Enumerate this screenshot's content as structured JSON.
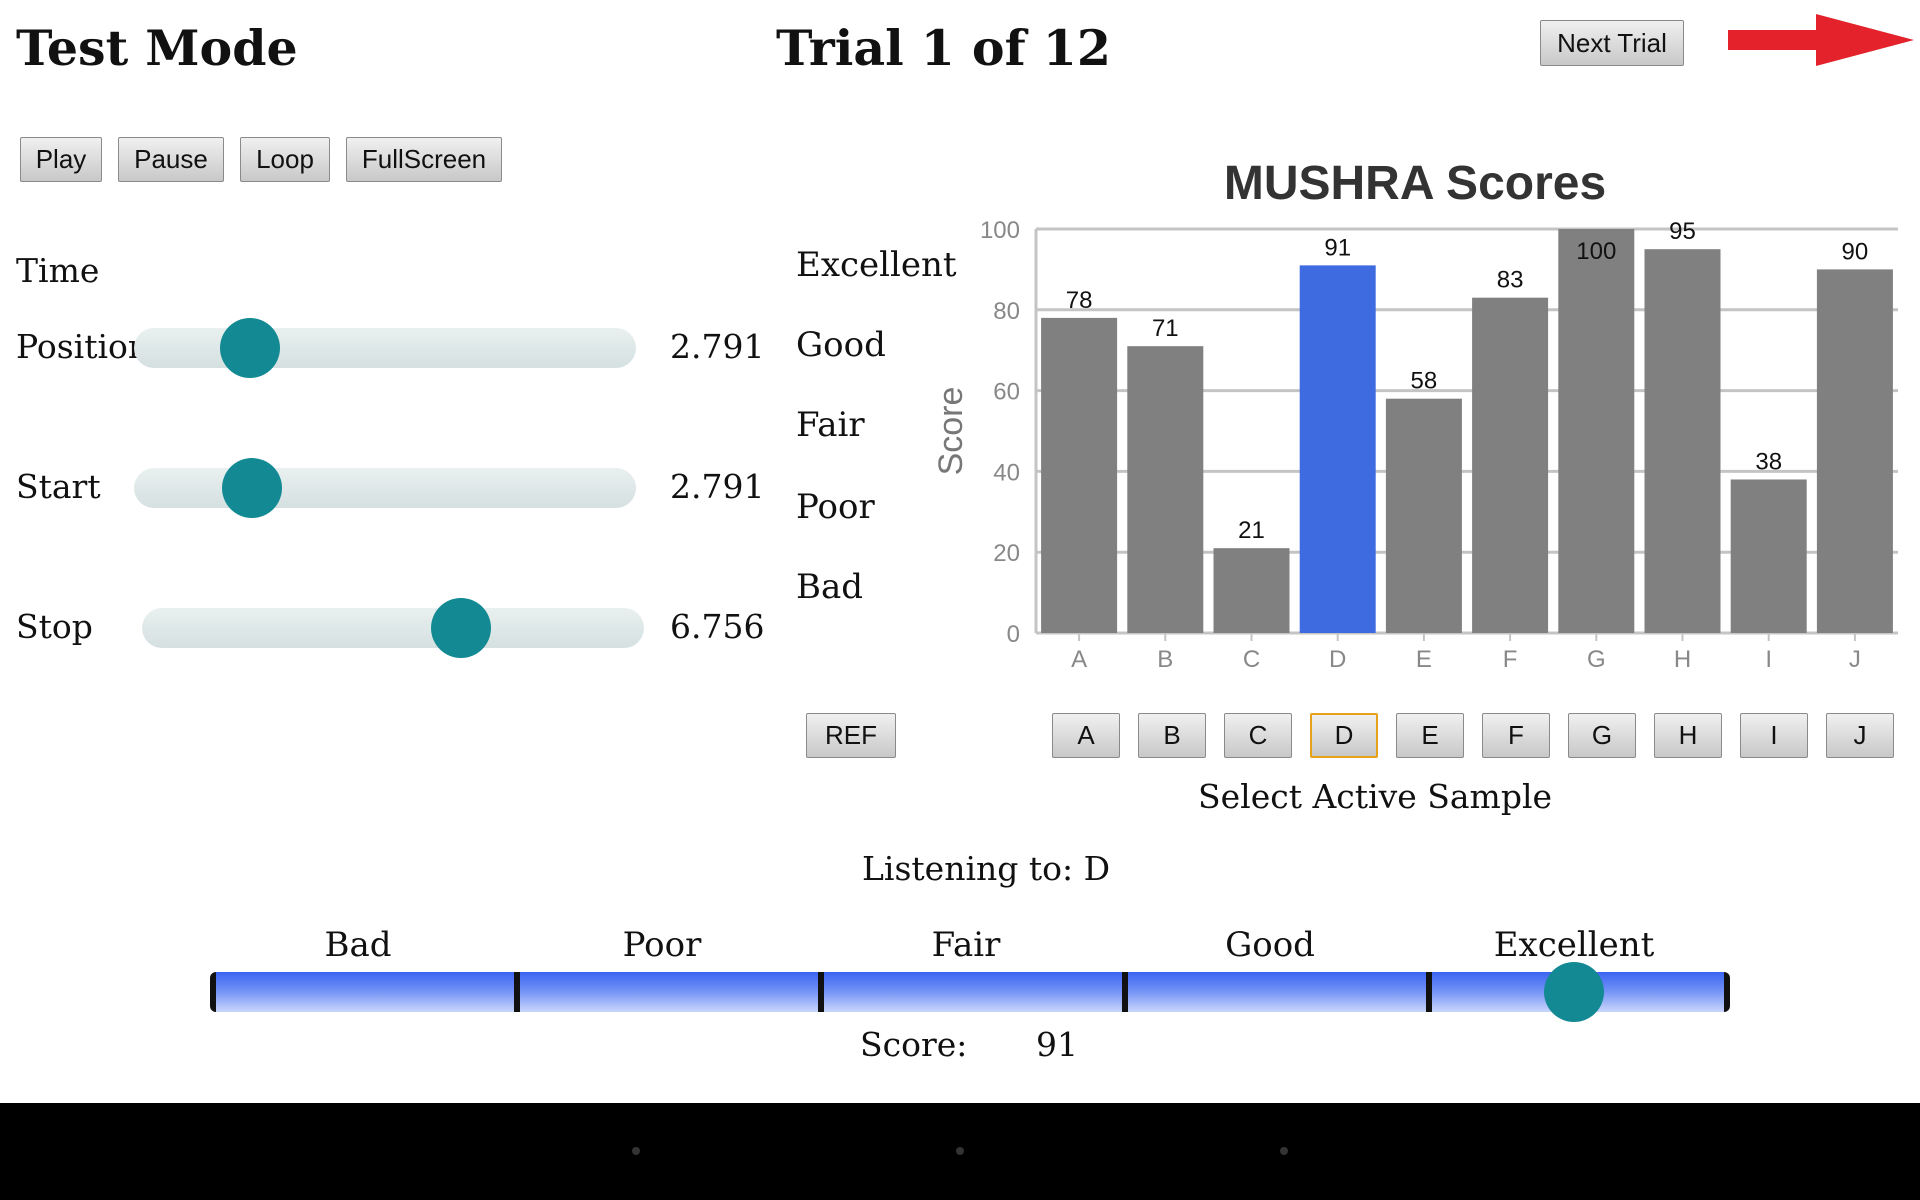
{
  "header": {
    "mode_title": "Test Mode",
    "trial_title": "Trial 1 of 12",
    "next_trial_label": "Next Trial",
    "arrow_icon": "arrow-right-icon",
    "arrow_color": "#e3222b"
  },
  "playback": {
    "buttons": [
      "Play",
      "Pause",
      "Loop",
      "FullScreen"
    ]
  },
  "time": {
    "heading": "Time",
    "position": {
      "label": "Position",
      "value": "2.791",
      "fraction": 0.232
    },
    "start": {
      "label": "Start",
      "value": "2.791",
      "fraction": 0.235
    },
    "stop": {
      "label": "Stop",
      "value": "6.756",
      "fraction": 0.636
    }
  },
  "rating_labels": [
    "Excellent",
    "Good",
    "Fair",
    "Poor",
    "Bad"
  ],
  "chart_data": {
    "type": "bar",
    "title": "MUSHRA Scores",
    "ylabel": "Score",
    "xlabel": "",
    "categories": [
      "A",
      "B",
      "C",
      "D",
      "E",
      "F",
      "G",
      "H",
      "I",
      "J"
    ],
    "values": [
      78,
      71,
      21,
      91,
      58,
      83,
      100,
      95,
      38,
      90
    ],
    "ylim": [
      0,
      100
    ],
    "yticks": [
      0,
      20,
      40,
      60,
      80,
      100
    ],
    "grid": true,
    "bar_color": "#808080",
    "highlight_index": 3,
    "highlight_color": "#3f6be0"
  },
  "samples": {
    "ref_label": "REF",
    "buttons": [
      "A",
      "B",
      "C",
      "D",
      "E",
      "F",
      "G",
      "H",
      "I",
      "J"
    ],
    "selected": "D",
    "caption": "Select Active Sample"
  },
  "listening": {
    "text": "Listening to: D"
  },
  "score_slider": {
    "labels": [
      "Bad",
      "Poor",
      "Fair",
      "Good",
      "Excellent"
    ],
    "score_label": "Score:",
    "score_value": "91",
    "value": 91
  }
}
